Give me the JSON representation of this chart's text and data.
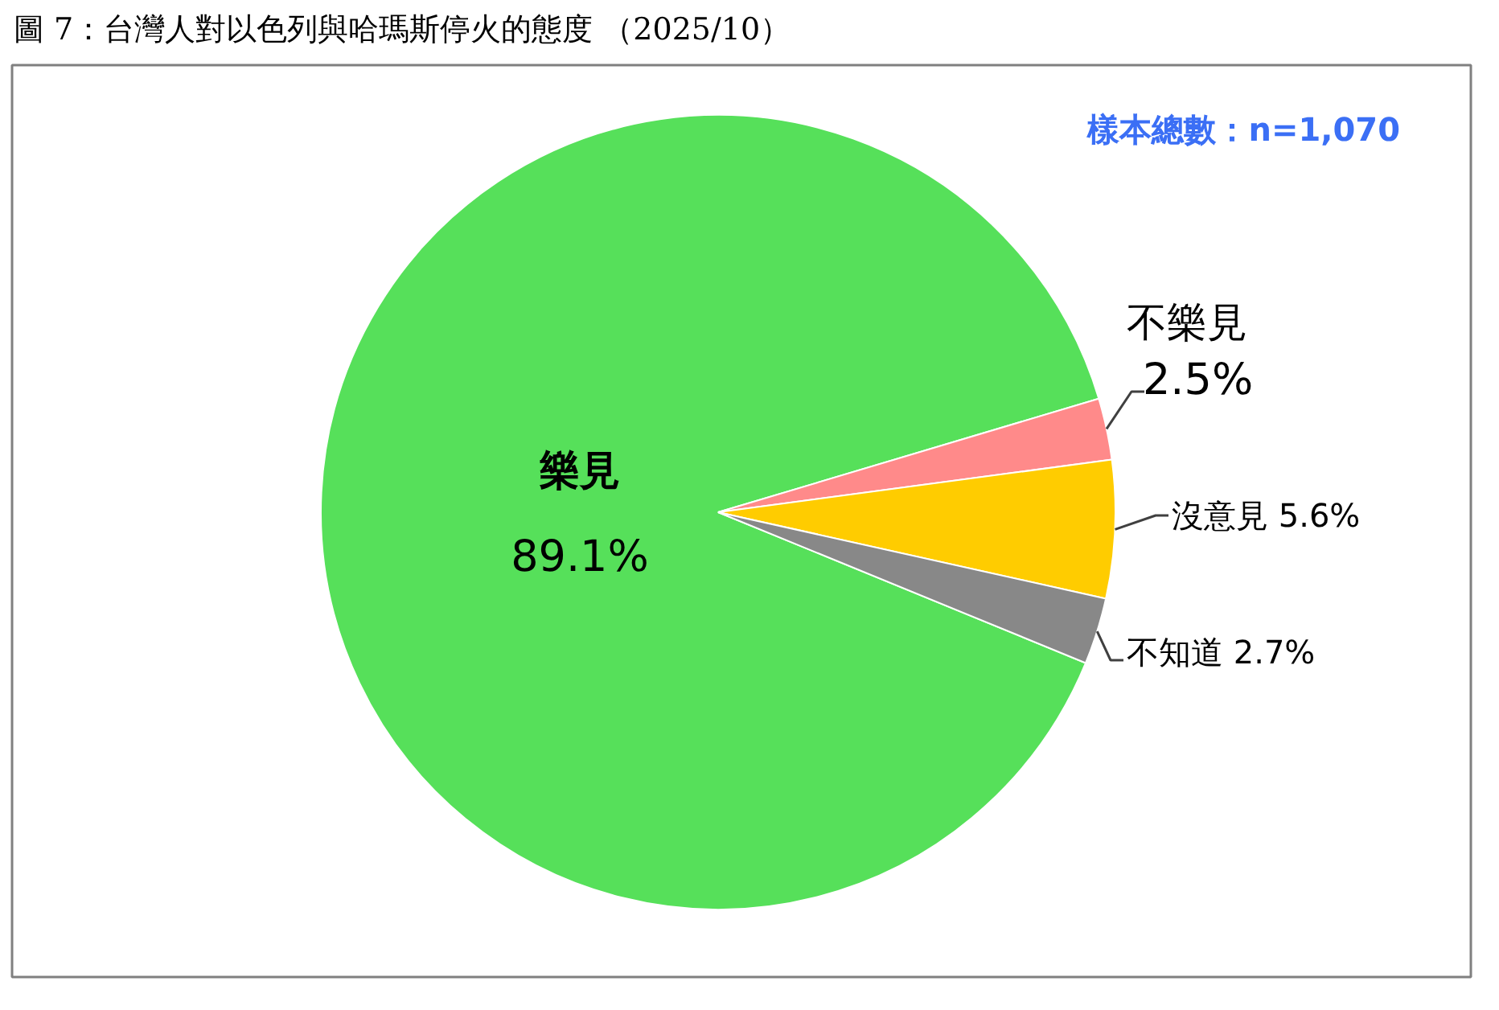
{
  "chart_data": {
    "type": "pie",
    "title": "圖 7：台灣人對以色列與哈瑪斯停火的態度 （2025/10）",
    "categories": [
      "樂見",
      "不樂見",
      "沒意見",
      "不知道"
    ],
    "values": [
      89.1,
      2.5,
      5.6,
      2.7
    ],
    "colors": [
      "#56e05a",
      "#ff8a8a",
      "#ffcc00",
      "#888888"
    ],
    "value_labels": [
      "89.1%",
      "2.5%",
      "5.6%",
      "2.7%"
    ],
    "annotations": [
      "樣本總數：n=1,070"
    ]
  }
}
